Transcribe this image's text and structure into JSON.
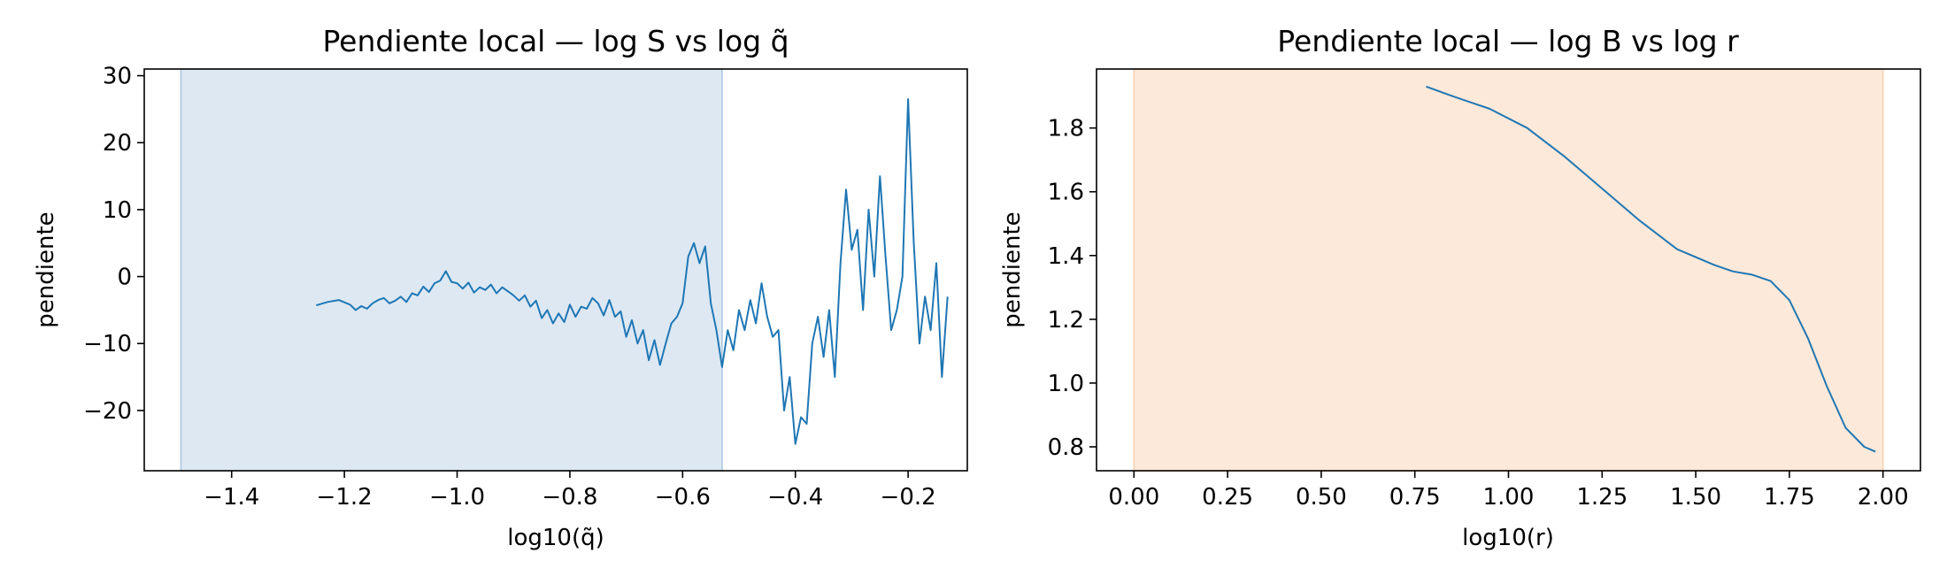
{
  "chart_data": [
    {
      "type": "line",
      "title": "Pendiente local — log S vs log q̃",
      "xlabel": "log10(q̃)",
      "ylabel": "pendiente",
      "xlim": [
        -1.555,
        -0.095
      ],
      "ylim": [
        -29.0,
        31.0
      ],
      "xticks": [
        -1.4,
        -1.2,
        -1.0,
        -0.8,
        -0.6,
        -0.4,
        -0.2
      ],
      "xtick_labels": [
        "−1.4",
        "−1.2",
        "−1.0",
        "−0.8",
        "−0.6",
        "−0.4",
        "−0.2"
      ],
      "yticks": [
        -20,
        -10,
        0,
        10,
        20,
        30
      ],
      "ytick_labels": [
        "−20",
        "−10",
        "0",
        "10",
        "20",
        "30"
      ],
      "grid": false,
      "shaded_region": {
        "x0": -1.49,
        "x1": -0.53,
        "color": "#dde8f3",
        "edge": "#a9c6e0"
      },
      "line_color": "#1f77b4",
      "series": [
        {
          "x": [
            -1.25,
            -1.23,
            -1.21,
            -1.19,
            -1.18,
            -1.17,
            -1.16,
            -1.15,
            -1.14,
            -1.13,
            -1.12,
            -1.11,
            -1.1,
            -1.09,
            -1.08,
            -1.07,
            -1.06,
            -1.05,
            -1.04,
            -1.03,
            -1.02,
            -1.01,
            -1.0,
            -0.99,
            -0.98,
            -0.97,
            -0.96,
            -0.95,
            -0.94,
            -0.93,
            -0.92,
            -0.91,
            -0.9,
            -0.89,
            -0.88,
            -0.87,
            -0.86,
            -0.85,
            -0.84,
            -0.83,
            -0.82,
            -0.81,
            -0.8,
            -0.79,
            -0.78,
            -0.77,
            -0.76,
            -0.75,
            -0.74,
            -0.73,
            -0.72,
            -0.71,
            -0.7,
            -0.69,
            -0.68,
            -0.67,
            -0.66,
            -0.65,
            -0.64,
            -0.63,
            -0.62,
            -0.61,
            -0.6,
            -0.59,
            -0.58,
            -0.57,
            -0.56,
            -0.55,
            -0.54,
            -0.53,
            -0.52,
            -0.51,
            -0.5,
            -0.49,
            -0.48,
            -0.47,
            -0.46,
            -0.45,
            -0.44,
            -0.43,
            -0.42,
            -0.41,
            -0.4,
            -0.39,
            -0.38,
            -0.37,
            -0.36,
            -0.35,
            -0.34,
            -0.33,
            -0.32,
            -0.31,
            -0.3,
            -0.29,
            -0.28,
            -0.27,
            -0.26,
            -0.25,
            -0.24,
            -0.23,
            -0.22,
            -0.21,
            -0.2,
            -0.19,
            -0.18,
            -0.17,
            -0.16,
            -0.15,
            -0.14,
            -0.13
          ],
          "values": [
            -4.3,
            -3.8,
            -3.5,
            -4.2,
            -5.0,
            -4.4,
            -4.8,
            -4.0,
            -3.5,
            -3.2,
            -4.0,
            -3.6,
            -3.0,
            -3.8,
            -2.5,
            -2.8,
            -1.5,
            -2.3,
            -1.0,
            -0.6,
            0.8,
            -0.8,
            -1.0,
            -1.8,
            -0.9,
            -2.4,
            -1.6,
            -2.0,
            -1.2,
            -2.5,
            -1.6,
            -2.2,
            -2.8,
            -3.6,
            -2.8,
            -4.5,
            -3.6,
            -6.2,
            -5.0,
            -7.0,
            -5.5,
            -6.8,
            -4.2,
            -6.0,
            -4.5,
            -4.8,
            -3.2,
            -4.0,
            -5.8,
            -3.5,
            -6.0,
            -5.2,
            -9.0,
            -6.5,
            -10.0,
            -8.0,
            -12.5,
            -9.5,
            -13.2,
            -10.0,
            -7.0,
            -6.0,
            -4.0,
            3.0,
            5.0,
            2.0,
            4.5,
            -4.0,
            -8.0,
            -13.5,
            -8.0,
            -11.0,
            -5.0,
            -8.0,
            -3.5,
            -7.0,
            -1.0,
            -6.0,
            -9.0,
            -8.0,
            -20.0,
            -15.0,
            -25.0,
            -21.0,
            -22.0,
            -10.0,
            -6.0,
            -12.0,
            -5.0,
            -15.0,
            2.0,
            13.0,
            4.0,
            7.0,
            -5.0,
            10.0,
            0.0,
            15.0,
            3.0,
            -8.0,
            -5.0,
            0.0,
            26.5,
            5.0,
            -10.0,
            -3.0,
            -8.0,
            2.0,
            -15.0,
            -3.0
          ]
        }
      ]
    },
    {
      "type": "line",
      "title": "Pendiente local — log B vs log r",
      "xlabel": "log10(r)",
      "ylabel": "pendiente",
      "xlim": [
        -0.1,
        2.1
      ],
      "ylim": [
        0.725,
        1.985
      ],
      "xticks": [
        0.0,
        0.25,
        0.5,
        0.75,
        1.0,
        1.25,
        1.5,
        1.75,
        2.0
      ],
      "xtick_labels": [
        "0.00",
        "0.25",
        "0.50",
        "0.75",
        "1.00",
        "1.25",
        "1.50",
        "1.75",
        "2.00"
      ],
      "yticks": [
        0.8,
        1.0,
        1.2,
        1.4,
        1.6,
        1.8
      ],
      "ytick_labels": [
        "0.8",
        "1.0",
        "1.2",
        "1.4",
        "1.6",
        "1.8"
      ],
      "grid": false,
      "shaded_region": {
        "x0": 0.0,
        "x1": 2.0,
        "color": "#fde9da",
        "edge": "#f8cfae"
      },
      "line_color": "#1f77b4",
      "series": [
        {
          "x": [
            0.78,
            0.85,
            0.95,
            1.05,
            1.15,
            1.25,
            1.35,
            1.45,
            1.55,
            1.6,
            1.65,
            1.7,
            1.75,
            1.8,
            1.85,
            1.9,
            1.95,
            1.98
          ],
          "values": [
            1.93,
            1.9,
            1.86,
            1.8,
            1.71,
            1.61,
            1.51,
            1.42,
            1.37,
            1.35,
            1.34,
            1.32,
            1.26,
            1.14,
            0.99,
            0.86,
            0.8,
            0.785
          ]
        }
      ]
    }
  ]
}
